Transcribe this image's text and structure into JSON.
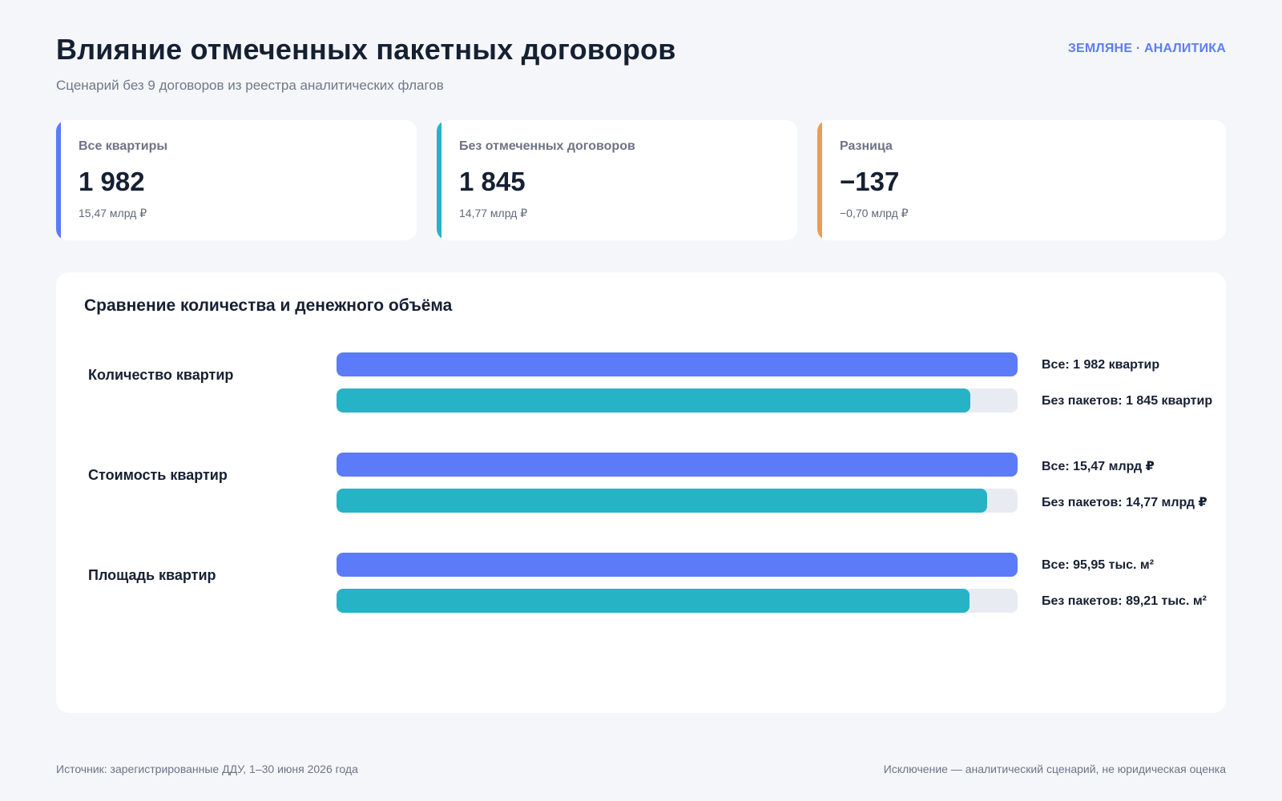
{
  "header": {
    "title": "Влияние отмеченных пакетных договоров",
    "subtitle": "Сценарий без 9 договоров из реестра аналитических флагов",
    "brand": "ЗЕМЛЯНЕ · АНАЛИТИКА"
  },
  "colors": {
    "accent_all": "#5b7bf9",
    "accent_without": "#26b3c5",
    "accent_diff": "#ee9a52",
    "track": "#e8ecf2"
  },
  "kpis": [
    {
      "label": "Все квартиры",
      "value": "1 982",
      "sub": "15,47 млрд ₽",
      "accent": "#5b7bf9"
    },
    {
      "label": "Без отмеченных договоров",
      "value": "1 845",
      "sub": "14,77 млрд ₽",
      "accent": "#26b3c5"
    },
    {
      "label": "Разница",
      "value": "−137",
      "sub": "−0,70 млрд ₽",
      "accent": "#ee9a52"
    }
  ],
  "chart_data": {
    "type": "bar",
    "orientation": "horizontal",
    "title": "Сравнение количества и денежного объёма",
    "categories": [
      "Количество квартир",
      "Стоимость квартир",
      "Площадь квартир"
    ],
    "series": [
      {
        "values": [
          1982,
          15.47,
          95.95
        ],
        "color": "#5b7bf9"
      },
      {
        "values": [
          1845,
          14.77,
          89.21
        ],
        "color": "#26b3c5"
      }
    ],
    "bar_labels": [
      [
        "Все: 1 982 квартир",
        "Без пакетов: 1 845 квартир"
      ],
      [
        "Все: 15,47 млрд ₽",
        "Без пакетов: 14,77 млрд ₽"
      ],
      [
        "Все: 95,95 тыс. м²",
        "Без пакетов: 89,21 тыс. м²"
      ]
    ],
    "normalization": "each category scaled to its 'Все' value",
    "grid": false,
    "legend": "none"
  },
  "footer": {
    "source": "Источник: зарегистрированные ДДУ, 1–30 июня 2026 года",
    "note": "Исключение — аналитический сценарий, не юридическая оценка"
  }
}
